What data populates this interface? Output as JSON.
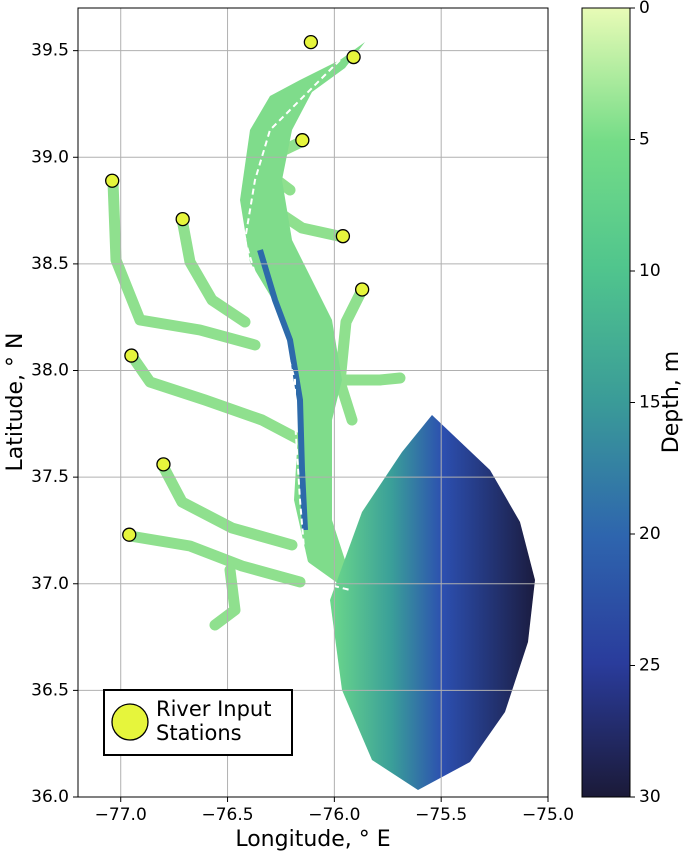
{
  "chart_data": {
    "type": "scatter",
    "xlabel": "Longitude, ° E",
    "ylabel": "Latitude, ° N",
    "series": [
      {
        "name": "River Input Stations",
        "color": "#e6f53c",
        "x": [
          -76.11,
          -75.91,
          -76.15,
          -77.04,
          -76.71,
          -75.96,
          -75.87,
          -76.95,
          -76.8,
          -76.96
        ],
        "values": [
          39.54,
          39.47,
          39.08,
          38.89,
          38.71,
          38.63,
          38.38,
          38.07,
          37.56,
          37.23
        ]
      }
    ],
    "xlim": [
      -77.2,
      -75.0
    ],
    "ylim": [
      36.0,
      39.7
    ],
    "xticks": [
      {
        "value": -77.0,
        "label": "−77.0"
      },
      {
        "value": -76.5,
        "label": "−76.5"
      },
      {
        "value": -76.0,
        "label": "−76.0"
      },
      {
        "value": -75.5,
        "label": "−75.5"
      },
      {
        "value": -75.0,
        "label": "−75.0"
      }
    ],
    "yticks": [
      {
        "value": 36.0,
        "label": "36.0"
      },
      {
        "value": 36.5,
        "label": "36.5"
      },
      {
        "value": 37.0,
        "label": "37.0"
      },
      {
        "value": 37.5,
        "label": "37.5"
      },
      {
        "value": 38.0,
        "label": "38.0"
      },
      {
        "value": 38.5,
        "label": "38.5"
      },
      {
        "value": 39.0,
        "label": "39.0"
      },
      {
        "value": 39.5,
        "label": "39.5"
      }
    ],
    "grid": true,
    "legend": "lower left",
    "colorbar": {
      "label": "Depth, m",
      "lim": [
        0,
        30
      ],
      "ticks": [
        0,
        5,
        10,
        15,
        20,
        25,
        30
      ]
    }
  }
}
